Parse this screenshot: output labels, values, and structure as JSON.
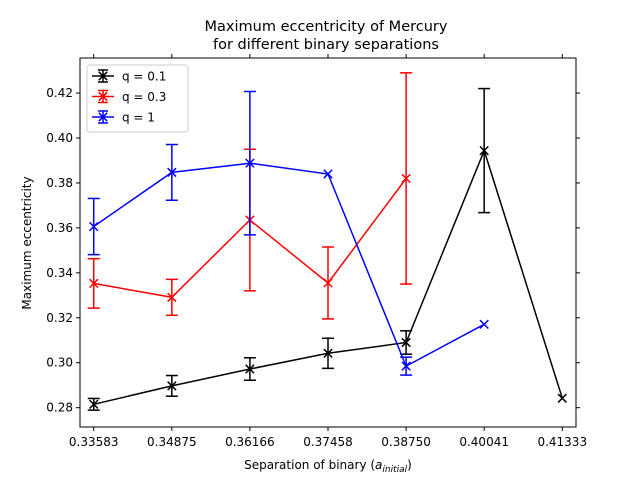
{
  "chart_data": {
    "type": "line",
    "title": [
      "Maximum eccentricity of Mercury",
      "for different binary separations"
    ],
    "xlabel": "Separation of binary (a_initial)",
    "xlabel_main": "Separation of binary (",
    "xlabel_var": "a",
    "xlabel_sub": "initial",
    "xlabel_close": ")",
    "ylabel": "Maximum eccentricity",
    "x_tick_labels": [
      "0.33583",
      "0.34875",
      "0.36166",
      "0.37458",
      "0.38750",
      "0.40041",
      "0.41333"
    ],
    "x_ticks": [
      0.33583,
      0.34875,
      0.36166,
      0.37458,
      0.3875,
      0.40041,
      0.41333
    ],
    "y_ticks": [
      0.28,
      0.3,
      0.32,
      0.34,
      0.36,
      0.38,
      0.4,
      0.42
    ],
    "y_tick_labels": [
      "0.28",
      "0.30",
      "0.32",
      "0.34",
      "0.36",
      "0.38",
      "0.40",
      "0.42"
    ],
    "xlim": [
      0.33356,
      0.4156
    ],
    "ylim": [
      0.2714,
      0.4356
    ],
    "grid": false,
    "legend_position": "top-left",
    "series": [
      {
        "name": "q = 0.1",
        "color": "#000000",
        "x": [
          0.33583,
          0.34875,
          0.36166,
          0.37458,
          0.3875,
          0.40041,
          0.41333
        ],
        "y": [
          0.2815,
          0.2897,
          0.2972,
          0.3042,
          0.309,
          0.3944,
          0.2842
        ],
        "err": [
          0.0026,
          0.0046,
          0.005,
          0.0067,
          0.0052,
          0.0276,
          0
        ]
      },
      {
        "name": "q = 0.3",
        "color": "#ff0000",
        "x": [
          0.33583,
          0.34875,
          0.36166,
          0.37458,
          0.3875
        ],
        "y": [
          0.3353,
          0.3291,
          0.3635,
          0.3355,
          0.382
        ],
        "err": [
          0.011,
          0.008,
          0.0315,
          0.016,
          0.047
        ]
      },
      {
        "name": "q = 1",
        "color": "#0000ff",
        "x": [
          0.33583,
          0.34875,
          0.36166,
          0.37458,
          0.3875,
          0.40041
        ],
        "y": [
          0.3606,
          0.3847,
          0.3888,
          0.384,
          0.2985,
          0.3171
        ],
        "err": [
          0.0125,
          0.0124,
          0.0319,
          0,
          0.004,
          0
        ]
      }
    ]
  }
}
